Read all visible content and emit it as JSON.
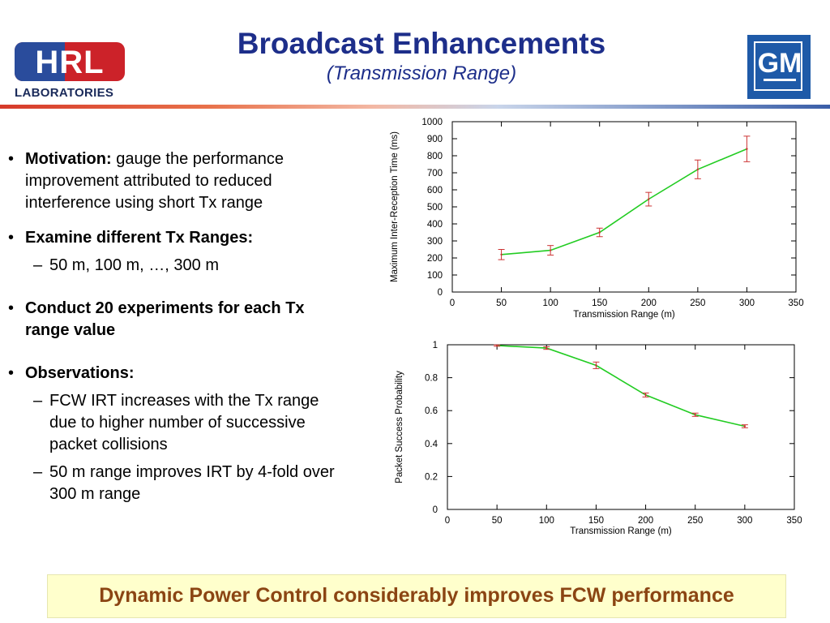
{
  "header": {
    "title": "Broadcast Enhancements",
    "subtitle": "(Transmission Range)",
    "left_logo": {
      "text": "HRL",
      "subtext": "LABORATORIES"
    },
    "right_logo": {
      "text": "GM"
    }
  },
  "bullets": [
    {
      "bold": "Motivation:",
      "text": " gauge the performance improvement attributed to reduced interference using short Tx range",
      "subs": []
    },
    {
      "bold": "Examine different Tx Ranges:",
      "text": "",
      "subs": [
        "50 m, 100 m, …, 300 m"
      ]
    },
    {
      "bold": "Conduct 20 experiments for each Tx range value",
      "text": "",
      "subs": []
    },
    {
      "bold": "Observations:",
      "text": "",
      "subs": [
        "FCW IRT increases with the Tx range due to higher number of successive packet collisions",
        "50 m range improves IRT by 4-fold over 300 m range"
      ]
    }
  ],
  "banner": "Dynamic Power Control considerably improves FCW performance",
  "colors": {
    "title": "#1d2e8a",
    "banner_text": "#8b4513",
    "banner_bg": "#ffffcc",
    "line": "#22cc22",
    "error_bar": "#cc3333"
  },
  "chart_data": [
    {
      "type": "line",
      "xlabel": "Transmission Range (m)",
      "ylabel": "Maximum Inter-Reception Time (ms)",
      "xlim": [
        0,
        350
      ],
      "ylim": [
        0,
        1000
      ],
      "xticks": [
        "0",
        "50",
        "100",
        "150",
        "200",
        "250",
        "300",
        "350"
      ],
      "yticks": [
        "0",
        "100",
        "200",
        "300",
        "400",
        "500",
        "600",
        "700",
        "800",
        "900",
        "1000"
      ],
      "x": [
        50,
        100,
        150,
        200,
        250,
        300
      ],
      "y": [
        220,
        245,
        350,
        545,
        720,
        840
      ],
      "err": [
        30,
        28,
        25,
        40,
        55,
        75
      ]
    },
    {
      "type": "line",
      "xlabel": "Transmission Range (m)",
      "ylabel": "Packet Success Probability",
      "xlim": [
        0,
        350
      ],
      "ylim": [
        0,
        1
      ],
      "xticks": [
        "0",
        "50",
        "100",
        "150",
        "200",
        "250",
        "300",
        "350"
      ],
      "yticks": [
        "0",
        "0.2",
        "0.4",
        "0.6",
        "0.8",
        "1"
      ],
      "x": [
        50,
        100,
        150,
        200,
        250,
        300
      ],
      "y": [
        0.995,
        0.98,
        0.875,
        0.695,
        0.575,
        0.505
      ],
      "err": [
        0.004,
        0.008,
        0.02,
        0.012,
        0.01,
        0.009
      ]
    }
  ]
}
